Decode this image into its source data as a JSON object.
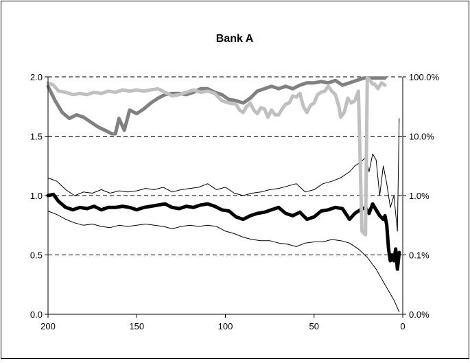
{
  "chart_data": {
    "type": "line",
    "title": "Bank A",
    "xlabel": "",
    "ylabel": "",
    "y2label": "",
    "xlim": [
      200,
      0
    ],
    "ylim": [
      0,
      2
    ],
    "y2scale": "log",
    "x_ticks": [
      "200",
      "150",
      "100",
      "50",
      "0"
    ],
    "y_ticks": [
      "0.0",
      "0.5",
      "1.0",
      "1.5",
      "2.0"
    ],
    "y2_ticks": [
      "0.0%",
      "0.1%",
      "1.0%",
      "10.0%",
      "100.0%"
    ],
    "gridlines": "dashed horizontal",
    "legend": "none",
    "colors": {
      "black": "#000000",
      "dark_gray": "#808080",
      "light_gray": "#c0c0c0"
    },
    "series": [
      {
        "axis": "left",
        "color": "#000000",
        "style": "thin",
        "x": [
          200,
          195,
          190,
          185,
          180,
          175,
          170,
          165,
          160,
          155,
          150,
          145,
          140,
          135,
          130,
          125,
          120,
          115,
          110,
          105,
          100,
          95,
          90,
          85,
          80,
          75,
          70,
          65,
          60,
          55,
          50,
          45,
          40,
          35,
          30,
          27,
          24,
          21,
          19,
          17,
          15,
          13,
          11,
          9,
          7,
          5,
          3,
          2
        ],
        "y": [
          1.15,
          1.12,
          1.05,
          1.0,
          1.03,
          1.02,
          1.05,
          1.02,
          1.04,
          1.03,
          1.04,
          1.06,
          1.05,
          1.07,
          1.03,
          1.05,
          1.06,
          1.07,
          1.1,
          1.05,
          1.07,
          1.02,
          1.0,
          1.02,
          1.03,
          1.05,
          1.06,
          1.08,
          1.1,
          1.03,
          1.05,
          1.1,
          1.12,
          1.15,
          1.2,
          1.25,
          1.28,
          1.32,
          1.2,
          1.35,
          1.3,
          1.0,
          1.25,
          1.1,
          0.9,
          1.0,
          0.7,
          1.65
        ]
      },
      {
        "axis": "left",
        "color": "#000000",
        "style": "thin",
        "x": [
          200,
          195,
          190,
          185,
          180,
          175,
          170,
          165,
          160,
          155,
          150,
          145,
          140,
          135,
          130,
          125,
          120,
          115,
          110,
          105,
          100,
          95,
          90,
          85,
          80,
          75,
          70,
          65,
          60,
          55,
          50,
          45,
          40,
          35,
          30,
          25,
          20,
          15,
          10,
          5,
          2
        ],
        "y": [
          0.87,
          0.84,
          0.8,
          0.77,
          0.75,
          0.76,
          0.74,
          0.73,
          0.75,
          0.74,
          0.75,
          0.76,
          0.75,
          0.74,
          0.72,
          0.74,
          0.75,
          0.74,
          0.75,
          0.74,
          0.7,
          0.68,
          0.65,
          0.63,
          0.62,
          0.62,
          0.6,
          0.59,
          0.57,
          0.6,
          0.61,
          0.61,
          0.63,
          0.62,
          0.6,
          0.55,
          0.48,
          0.38,
          0.25,
          0.12,
          0.02
        ]
      },
      {
        "axis": "left",
        "color": "#000000",
        "style": "thick",
        "x": [
          200,
          197,
          194,
          190,
          186,
          182,
          178,
          174,
          170,
          166,
          162,
          158,
          154,
          150,
          146,
          142,
          138,
          134,
          130,
          126,
          122,
          118,
          114,
          110,
          106,
          102,
          98,
          94,
          90,
          86,
          82,
          78,
          74,
          70,
          66,
          62,
          58,
          54,
          50,
          46,
          42,
          38,
          34,
          30,
          27,
          24,
          21,
          19,
          17,
          15,
          13,
          11,
          10,
          9,
          8,
          7,
          6,
          5,
          4,
          3,
          2
        ],
        "y": [
          1.0,
          1.01,
          0.95,
          0.9,
          0.88,
          0.9,
          0.89,
          0.91,
          0.88,
          0.9,
          0.9,
          0.91,
          0.9,
          0.88,
          0.9,
          0.91,
          0.92,
          0.93,
          0.9,
          0.89,
          0.91,
          0.9,
          0.92,
          0.93,
          0.91,
          0.88,
          0.87,
          0.82,
          0.8,
          0.83,
          0.85,
          0.86,
          0.88,
          0.9,
          0.85,
          0.83,
          0.86,
          0.8,
          0.82,
          0.87,
          0.88,
          0.9,
          0.89,
          0.8,
          0.85,
          0.88,
          0.9,
          0.85,
          0.93,
          0.88,
          0.83,
          0.8,
          0.83,
          0.75,
          0.55,
          0.45,
          0.5,
          0.45,
          0.55,
          0.38,
          0.52
        ]
      },
      {
        "axis": "left",
        "color": "#808080",
        "style": "thick",
        "x": [
          200,
          196,
          192,
          188,
          184,
          180,
          176,
          172,
          168,
          164,
          162,
          160,
          157,
          154,
          150,
          146,
          142,
          138,
          134,
          130,
          126,
          122,
          118,
          114,
          110,
          106,
          102,
          98,
          94,
          90,
          86,
          82,
          78,
          74,
          70,
          66,
          62,
          58,
          54,
          50,
          46,
          42,
          38,
          34,
          30,
          26,
          22,
          18,
          14,
          12,
          10
        ],
        "y": [
          1.92,
          1.8,
          1.7,
          1.65,
          1.68,
          1.66,
          1.62,
          1.58,
          1.55,
          1.52,
          1.52,
          1.65,
          1.55,
          1.72,
          1.69,
          1.73,
          1.78,
          1.82,
          1.85,
          1.86,
          1.86,
          1.85,
          1.87,
          1.9,
          1.9,
          1.87,
          1.85,
          1.81,
          1.8,
          1.78,
          1.82,
          1.88,
          1.9,
          1.92,
          1.9,
          1.92,
          1.9,
          1.93,
          1.95,
          1.95,
          1.96,
          1.95,
          1.97,
          1.93,
          1.95,
          1.97,
          1.99,
          1.99,
          1.99,
          1.99,
          1.99
        ]
      },
      {
        "axis": "left",
        "color": "#c0c0c0",
        "style": "thick",
        "x": [
          200,
          197,
          194,
          190,
          186,
          182,
          178,
          174,
          170,
          166,
          162,
          158,
          154,
          150,
          146,
          142,
          138,
          134,
          130,
          126,
          122,
          118,
          114,
          110,
          106,
          102,
          98,
          94,
          92,
          90,
          88,
          86,
          84,
          82,
          80,
          78,
          76,
          74,
          72,
          70,
          68,
          66,
          64,
          62,
          60,
          58,
          56,
          54,
          52,
          50,
          48,
          46,
          44,
          42,
          40,
          38,
          36,
          35,
          33,
          31,
          29,
          27,
          25,
          23,
          21,
          20,
          19,
          18,
          17,
          16,
          14,
          12,
          10
        ],
        "y": [
          1.95,
          1.93,
          1.88,
          1.87,
          1.85,
          1.86,
          1.85,
          1.87,
          1.86,
          1.88,
          1.87,
          1.89,
          1.88,
          1.89,
          1.88,
          1.89,
          1.9,
          1.87,
          1.84,
          1.85,
          1.87,
          1.89,
          1.87,
          1.88,
          1.86,
          1.8,
          1.78,
          1.77,
          1.72,
          1.7,
          1.75,
          1.78,
          1.72,
          1.69,
          1.74,
          1.73,
          1.66,
          1.72,
          1.68,
          1.68,
          1.73,
          1.77,
          1.78,
          1.84,
          1.83,
          1.86,
          1.75,
          1.7,
          1.76,
          1.78,
          1.85,
          1.87,
          1.88,
          1.92,
          1.88,
          1.85,
          1.75,
          1.66,
          1.7,
          1.82,
          1.78,
          1.8,
          1.88,
          0.7,
          0.67,
          1.99,
          1.98,
          1.96,
          1.94,
          1.94,
          1.9,
          1.95,
          1.93
        ]
      }
    ]
  }
}
